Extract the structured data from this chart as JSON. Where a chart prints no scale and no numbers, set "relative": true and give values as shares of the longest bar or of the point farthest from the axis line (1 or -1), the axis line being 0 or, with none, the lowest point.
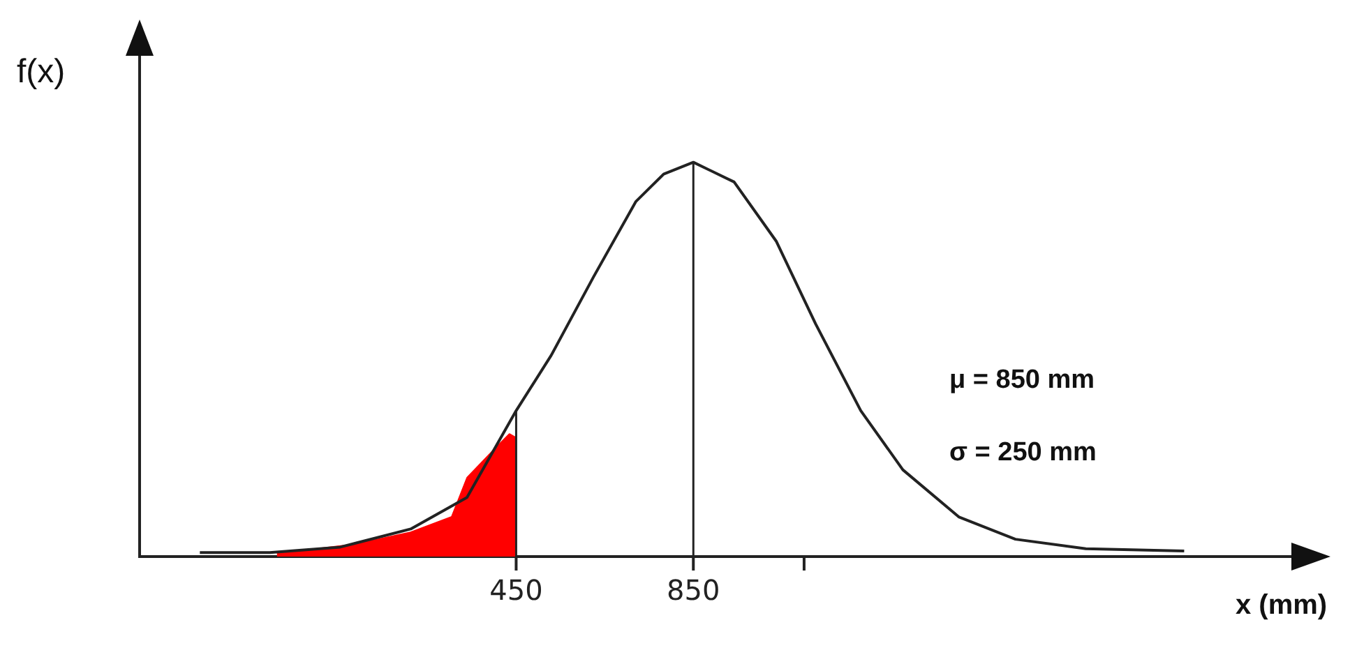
{
  "chart_data": {
    "type": "line",
    "relative": true,
    "xlabel": "x (mm)",
    "ylabel": "f(x)",
    "xlim": [
      -400,
      2200
    ],
    "xticks": [
      450,
      850,
      {
        "value": 1100,
        "label": null
      }
    ],
    "series": [
      {
        "type": "line",
        "color": "#222222",
        "x": [
          -264,
          -106,
          53,
          212,
          339,
          450,
          529,
          625,
          720,
          783,
          850,
          942,
          1037,
          1126,
          1228,
          1323,
          1450,
          1577,
          1736,
          1958
        ],
        "values": [
          0.01,
          0.01,
          0.024,
          0.07,
          0.15,
          0.37,
          0.51,
          0.71,
          0.9,
          0.97,
          1,
          0.95,
          0.8,
          0.59,
          0.37,
          0.22,
          0.1,
          0.044,
          0.02,
          0.014
        ]
      },
      {
        "type": "area",
        "color": "#ff0000",
        "x": [
          -90,
          85,
          210,
          305,
          340,
          400,
          435,
          450
        ],
        "values": [
          0.007,
          0.03,
          0.06,
          0.1,
          0.2,
          0.27,
          0.31,
          0.3
        ]
      }
    ],
    "ref_lines": [
      {
        "axis": "x",
        "value": 450,
        "color": "#222222"
      },
      {
        "axis": "x",
        "value": 850,
        "color": "#222222"
      }
    ],
    "annotations": [
      "μ = 850 mm",
      "σ = 250 mm"
    ],
    "grid": false,
    "legend": false,
    "marker": "none",
    "line_style": "solid"
  }
}
